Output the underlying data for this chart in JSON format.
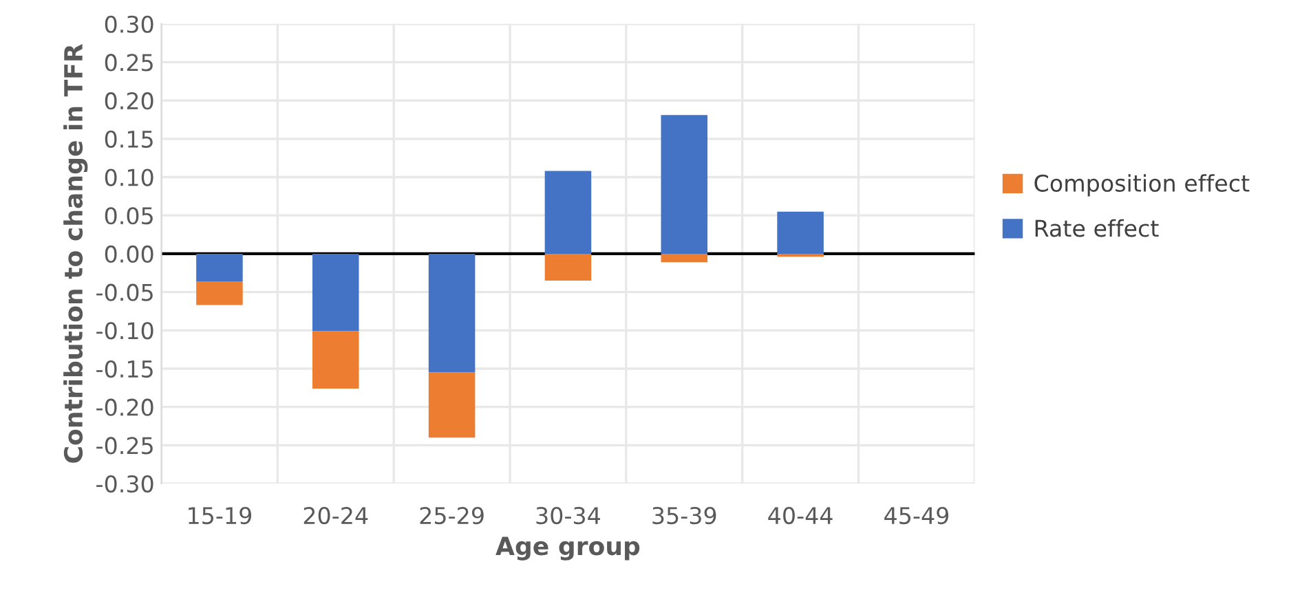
{
  "chart_data": {
    "type": "bar",
    "stacked": true,
    "xlabel": "Age group",
    "ylabel": "Contribution to change in TFR",
    "categories": [
      "15-19",
      "20-24",
      "25-29",
      "30-34",
      "35-39",
      "40-44",
      "45-49"
    ],
    "series": [
      {
        "name": "Rate effect",
        "color": "#4472c4",
        "values": [
          -0.036,
          -0.101,
          -0.155,
          0.108,
          0.181,
          0.055,
          null
        ]
      },
      {
        "name": "Composition effect",
        "color": "#ed7d31",
        "values": [
          -0.031,
          -0.075,
          -0.085,
          -0.035,
          -0.011,
          -0.004,
          null
        ]
      }
    ],
    "ylim": [
      -0.3,
      0.3
    ],
    "yticks": [
      {
        "value": -0.3,
        "label": "-0.30"
      },
      {
        "value": -0.25,
        "label": "-0.25"
      },
      {
        "value": -0.2,
        "label": "-0.20"
      },
      {
        "value": -0.15,
        "label": "-0.15"
      },
      {
        "value": -0.1,
        "label": "-0.10"
      },
      {
        "value": -0.05,
        "label": "-0.05"
      },
      {
        "value": 0,
        "label": "0.00"
      },
      {
        "value": 0.05,
        "label": "0.05"
      },
      {
        "value": 0.1,
        "label": "0.10"
      },
      {
        "value": 0.15,
        "label": "0.15"
      },
      {
        "value": 0.2,
        "label": "0.20"
      },
      {
        "value": 0.25,
        "label": "0.25"
      },
      {
        "value": 0.3,
        "label": "0.30"
      }
    ],
    "ref_lines": [
      {
        "axis": "y",
        "value": 0,
        "color": "#000000"
      }
    ],
    "grid": true,
    "legend": "right"
  }
}
